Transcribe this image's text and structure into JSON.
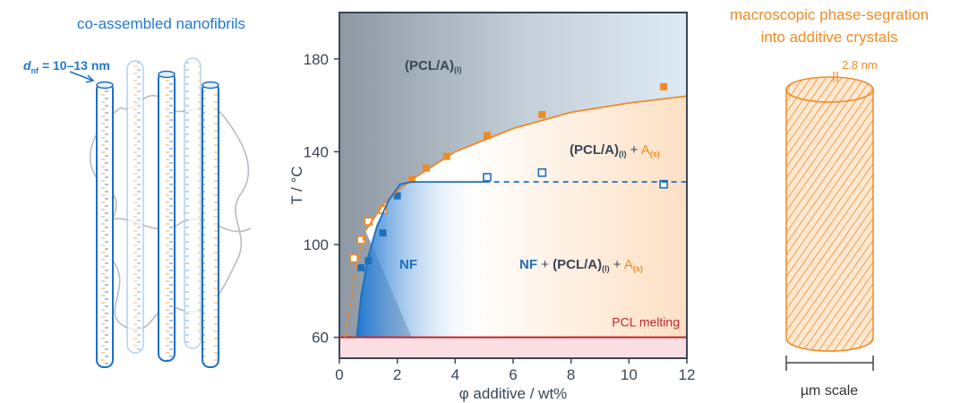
{
  "chart_data": {
    "type": "scatter",
    "x_label": "φ additive / wt%",
    "y_label": "T / °C",
    "xlim": [
      0,
      12
    ],
    "xticks": [
      0,
      2,
      4,
      6,
      8,
      10,
      12
    ],
    "ylim": [
      51,
      200
    ],
    "yticks": [
      60,
      100,
      140,
      180
    ],
    "series": [
      {
        "kind": "points",
        "color": "#f08a24",
        "filled": true,
        "x": [
          2.5,
          3,
          3.7,
          5.1,
          7,
          11.2
        ],
        "values": [
          128,
          133,
          138,
          147,
          156,
          168
        ]
      },
      {
        "kind": "points",
        "color": "#f08a24",
        "filled": false,
        "x": [
          0.5,
          0.75,
          1,
          1.5
        ],
        "values": [
          94,
          102,
          110,
          115
        ]
      },
      {
        "kind": "points",
        "color": "#1f6fbf",
        "filled": true,
        "x": [
          0.75,
          1,
          1.5,
          2
        ],
        "values": [
          90,
          93,
          105,
          121
        ]
      },
      {
        "kind": "points",
        "color": "#1f6fbf",
        "filled": false,
        "x": [
          5.1,
          7,
          11.2
        ],
        "values": [
          129,
          131,
          126
        ]
      },
      {
        "kind": "line",
        "color": "#f08a24",
        "dash": true,
        "x": [
          0.2,
          0.4,
          0.6,
          0.9
        ],
        "values": [
          60,
          76,
          91,
          106
        ]
      },
      {
        "kind": "line",
        "color": "#f08a24",
        "dash": false,
        "x": [
          0.9,
          1.5,
          2,
          2.5,
          3,
          4,
          5,
          6,
          8,
          10,
          12
        ],
        "values": [
          106,
          117,
          123,
          128,
          132,
          140,
          145,
          150,
          157,
          161,
          164
        ]
      },
      {
        "kind": "line",
        "color": "#1f6fbf",
        "dash": false,
        "x": [
          0.6,
          0.75,
          1,
          1.3,
          1.7,
          2.1,
          2.5,
          5
        ],
        "values": [
          60,
          78,
          95,
          108,
          119,
          126,
          127,
          127
        ]
      },
      {
        "kind": "line",
        "color": "#1f6fbf",
        "dash": true,
        "x": [
          5,
          12
        ],
        "values": [
          127,
          127
        ]
      }
    ],
    "hline": {
      "value": 60,
      "label": "PCL melting",
      "color": "#c0272d"
    },
    "annotations": [
      {
        "parts": [
          "(PCL/A)",
          "(l)"
        ],
        "colors": [
          "#3a4658",
          "#3a4658"
        ],
        "sub": [
          false,
          true
        ]
      },
      {
        "parts": [
          "(PCL/A)",
          "(l)",
          " + ",
          "A",
          "(s)"
        ],
        "colors": [
          "#3a4658",
          "#3a4658",
          "#3a4658",
          "#f08a24",
          "#f08a24"
        ],
        "sub": [
          false,
          true,
          false,
          false,
          true
        ]
      },
      {
        "parts": [
          "NF"
        ],
        "colors": [
          "#1f6fbf"
        ],
        "sub": [
          false
        ]
      },
      {
        "parts": [
          "NF",
          " + ",
          "(PCL/A)",
          "(l)",
          " + ",
          "A",
          "(s)"
        ],
        "colors": [
          "#1f6fbf",
          "#3a4658",
          "#3a4658",
          "#3a4658",
          "#3a4658",
          "#f08a24",
          "#f08a24"
        ],
        "sub": [
          false,
          false,
          false,
          true,
          false,
          false,
          true
        ]
      }
    ]
  },
  "left_panel": {
    "title": "co-assembled nanofibrils",
    "diameter_label": [
      "d",
      "nf",
      " = 10–13 nm"
    ]
  },
  "right_panel": {
    "title": [
      "macroscopic phase-segration",
      "into additive crystals"
    ],
    "spacing_label": "2.8 nm",
    "scale_label": "µm scale"
  }
}
